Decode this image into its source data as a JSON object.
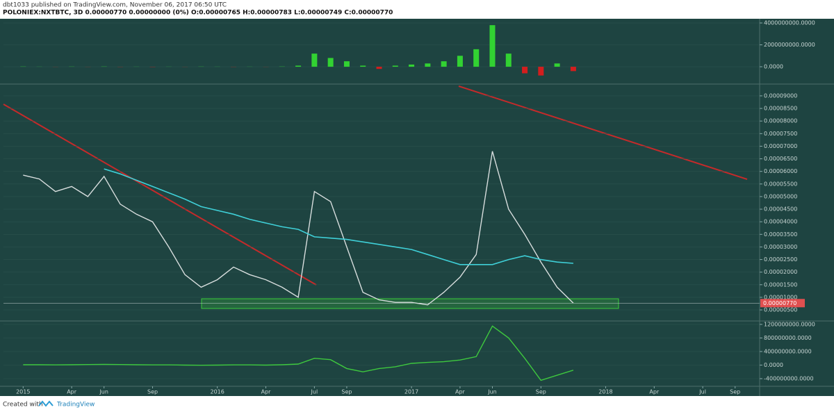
{
  "header": {
    "publisher": "dbt1033 published on TradingView.com, November 06, 2017 06:50 UTC",
    "symbol_line": "POLONIEX:NXTBTC, 3D 0.00000770 0.00000000 (0%) O:0.00000765 H:0.00000783 L:0.00000749 C:0.00000770",
    "last_price_label": "0.00000770"
  },
  "footer": {
    "created_with": "Created with",
    "brand": "TradingView"
  },
  "chart_data": [
    {
      "type": "bar",
      "up_color": "#32d232",
      "down_color": "#d21e1e",
      "x": [
        "2015-01",
        "2015-02",
        "2015-03",
        "2015-04",
        "2015-05",
        "2015-06",
        "2015-07",
        "2015-08",
        "2015-09",
        "2015-10",
        "2015-11",
        "2015-12",
        "2016-01",
        "2016-02",
        "2016-03",
        "2016-04",
        "2016-05",
        "2016-06",
        "2016-07",
        "2016-08",
        "2016-09",
        "2016-10",
        "2016-11",
        "2016-12",
        "2017-01",
        "2017-02",
        "2017-03",
        "2017-04",
        "2017-05",
        "2017-06",
        "2017-07",
        "2017-08",
        "2017-09",
        "2017-10",
        "2017-11"
      ],
      "series": [
        {
          "color": "#32d232",
          "values": [
            20000000,
            10000000,
            -10000000,
            15000000,
            -10000000,
            20000000,
            -15000000,
            10000000,
            -20000000,
            10000000,
            -10000000,
            15000000,
            10000000,
            -15000000,
            10000000,
            -10000000,
            20000000,
            100000000,
            1200000000,
            800000000,
            500000000,
            100000000,
            -200000000,
            100000000,
            200000000,
            300000000,
            500000000,
            1000000000,
            1600000000,
            3800000000,
            1200000000,
            -600000000,
            -800000000,
            300000000,
            -400000000
          ]
        }
      ],
      "xlim": [
        "2014-12",
        "2018-10"
      ],
      "ylim": [
        -1520000000,
        4320000000
      ],
      "yticks": [
        {
          "value": 4000000000,
          "label": "4000000000.0000"
        },
        {
          "value": 2000000000,
          "label": "2000000000.0000"
        },
        {
          "value": 0,
          "label": "0.0000"
        }
      ]
    },
    {
      "type": "line",
      "x": [
        "2015-01",
        "2015-02",
        "2015-03",
        "2015-04",
        "2015-05",
        "2015-06",
        "2015-07",
        "2015-08",
        "2015-09",
        "2015-10",
        "2015-11",
        "2015-12",
        "2016-01",
        "2016-02",
        "2016-03",
        "2016-04",
        "2016-05",
        "2016-06",
        "2016-07",
        "2016-08",
        "2016-09",
        "2016-10",
        "2016-11",
        "2016-12",
        "2017-01",
        "2017-02",
        "2017-03",
        "2017-04",
        "2017-05",
        "2017-06",
        "2017-07",
        "2017-08",
        "2017-09",
        "2017-10",
        "2017-11"
      ],
      "series": [
        {
          "color": "#d8dede",
          "values": [
            5.85e-05,
            5.7e-05,
            5.2e-05,
            5.4e-05,
            5e-05,
            5.8e-05,
            4.7e-05,
            4.3e-05,
            4e-05,
            3e-05,
            1.9e-05,
            1.4e-05,
            1.7e-05,
            2.2e-05,
            1.9e-05,
            1.7e-05,
            1.4e-05,
            1e-05,
            5.2e-05,
            4.8e-05,
            3e-05,
            1.2e-05,
            9e-06,
            8e-06,
            8e-06,
            7e-06,
            1.2e-05,
            1.8e-05,
            2.7e-05,
            6.8e-05,
            4.5e-05,
            3.5e-05,
            2.4e-05,
            1.4e-05,
            7.7e-06
          ]
        },
        {
          "color": "#3fd0d8",
          "values": [
            null,
            null,
            null,
            null,
            null,
            6.1e-05,
            5.9e-05,
            5.65e-05,
            5.4e-05,
            5.15e-05,
            4.9e-05,
            4.6e-05,
            4.45e-05,
            4.3e-05,
            4.1e-05,
            3.95e-05,
            3.8e-05,
            3.7e-05,
            3.4e-05,
            3.35e-05,
            3.3e-05,
            3.2e-05,
            3.1e-05,
            3e-05,
            2.9e-05,
            2.7e-05,
            2.5e-05,
            2.3e-05,
            2.3e-05,
            2.3e-05,
            2.5e-05,
            2.65e-05,
            2.5e-05,
            2.4e-05,
            2.35e-05
          ]
        }
      ],
      "xlim": [
        "2014-12",
        "2018-10"
      ],
      "ylim": [
        6e-07,
        9.44e-05
      ],
      "yticks": [
        {
          "value": 5e-06,
          "label": "0.00000500"
        },
        {
          "value": 1e-05,
          "label": "0.00001000"
        },
        {
          "value": 1.5e-05,
          "label": "0.00001500"
        },
        {
          "value": 2e-05,
          "label": "0.00002000"
        },
        {
          "value": 2.5e-05,
          "label": "0.00002500"
        },
        {
          "value": 3e-05,
          "label": "0.00003000"
        },
        {
          "value": 3.5e-05,
          "label": "0.00003500"
        },
        {
          "value": 4e-05,
          "label": "0.00004000"
        },
        {
          "value": 4.5e-05,
          "label": "0.00004500"
        },
        {
          "value": 5e-05,
          "label": "0.00005000"
        },
        {
          "value": 5.5e-05,
          "label": "0.00005500"
        },
        {
          "value": 6e-05,
          "label": "0.00006000"
        },
        {
          "value": 6.5e-05,
          "label": "0.00006500"
        },
        {
          "value": 7e-05,
          "label": "0.00007000"
        },
        {
          "value": 7.5e-05,
          "label": "0.00007500"
        },
        {
          "value": 8e-05,
          "label": "0.00008000"
        },
        {
          "value": 8.5e-05,
          "label": "0.00008500"
        },
        {
          "value": 9e-05,
          "label": "0.00009000"
        }
      ]
    },
    {
      "type": "line",
      "x": [
        "2015-01",
        "2015-02",
        "2015-03",
        "2015-04",
        "2015-05",
        "2015-06",
        "2015-07",
        "2015-08",
        "2015-09",
        "2015-10",
        "2015-11",
        "2015-12",
        "2016-01",
        "2016-02",
        "2016-03",
        "2016-04",
        "2016-05",
        "2016-06",
        "2016-07",
        "2016-08",
        "2016-09",
        "2016-10",
        "2016-11",
        "2016-12",
        "2017-01",
        "2017-02",
        "2017-03",
        "2017-04",
        "2017-05",
        "2017-06",
        "2017-07",
        "2017-08",
        "2017-09",
        "2017-10",
        "2017-11"
      ],
      "series": [
        {
          "color": "#3ec83e",
          "values": [
            10000000,
            10000000,
            5000000,
            10000000,
            15000000,
            20000000,
            15000000,
            10000000,
            5000000,
            5000000,
            0,
            -5000000,
            0,
            5000000,
            5000000,
            0,
            10000000,
            30000000,
            200000000,
            160000000,
            -100000000,
            -200000000,
            -100000000,
            -50000000,
            50000000,
            80000000,
            100000000,
            150000000,
            250000000,
            1150000000,
            800000000,
            200000000,
            -450000000,
            -300000000,
            -150000000
          ]
        }
      ],
      "xlim": [
        "2014-12",
        "2018-10"
      ],
      "ylim": [
        -605000000,
        1280000000
      ],
      "yticks": [
        {
          "value": 1200000000,
          "label": "1200000000.0000"
        },
        {
          "value": 800000000,
          "label": "800000000.0000"
        },
        {
          "value": 400000000,
          "label": "400000000.0000"
        },
        {
          "value": 0,
          "label": "0.0000"
        },
        {
          "value": -400000000,
          "label": "-400000000.0000"
        }
      ],
      "xticks": [
        {
          "value": "2015-01",
          "label": "2015"
        },
        {
          "value": "2015-04",
          "label": "Apr"
        },
        {
          "value": "2015-06",
          "label": "Jun"
        },
        {
          "value": "2015-09",
          "label": "Sep"
        },
        {
          "value": "2016-01",
          "label": "2016"
        },
        {
          "value": "2016-04",
          "label": "Apr"
        },
        {
          "value": "2016-07",
          "label": "Jul"
        },
        {
          "value": "2016-09",
          "label": "Sep"
        },
        {
          "value": "2017-01",
          "label": "2017"
        },
        {
          "value": "2017-04",
          "label": "Apr"
        },
        {
          "value": "2017-06",
          "label": "Jun"
        },
        {
          "value": "2017-09",
          "label": "Sep"
        },
        {
          "value": "2018-01",
          "label": "2018"
        },
        {
          "value": "2018-04",
          "label": "Apr"
        },
        {
          "value": "2018-07",
          "label": "Jul"
        },
        {
          "value": "2018-09",
          "label": "Sep"
        }
      ]
    }
  ]
}
